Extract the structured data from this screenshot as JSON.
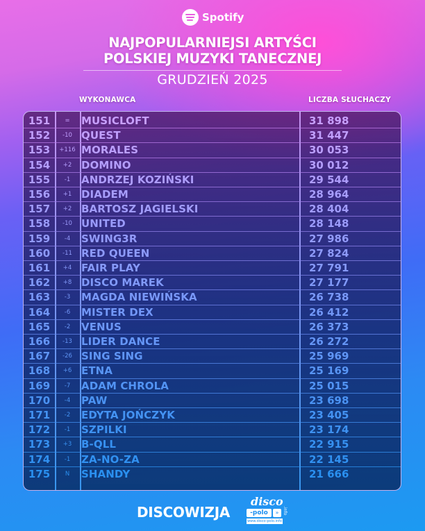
{
  "header": {
    "brand": "Spotify",
    "title_line1": "NAJPOPULARNIEJSI ARTYŚCI",
    "title_line2": "POLSKIEJ MUZYKI TANECZNEJ",
    "subtitle": "GRUDZIEŃ 2025"
  },
  "columns": {
    "artist": "WYKONAWCA",
    "listeners": "LICZBA SŁUCHACZY"
  },
  "rows": [
    {
      "rank": "151",
      "change": "=",
      "artist": "MUSICLOFT",
      "listeners": "31 898"
    },
    {
      "rank": "152",
      "change": "-10",
      "artist": "QUEST",
      "listeners": "31 447"
    },
    {
      "rank": "153",
      "change": "+116",
      "artist": "MORALES",
      "listeners": "30 053"
    },
    {
      "rank": "154",
      "change": "+2",
      "artist": "DOMINO",
      "listeners": "30 012"
    },
    {
      "rank": "155",
      "change": "-1",
      "artist": "ANDRZEJ KOZIŃSKI",
      "listeners": "29 544"
    },
    {
      "rank": "156",
      "change": "+1",
      "artist": "DIADEM",
      "listeners": "28 964"
    },
    {
      "rank": "157",
      "change": "+2",
      "artist": "BARTOSZ JAGIELSKI",
      "listeners": "28 404"
    },
    {
      "rank": "158",
      "change": "-10",
      "artist": "UNITED",
      "listeners": "28 148"
    },
    {
      "rank": "159",
      "change": "-4",
      "artist": "SWING3R",
      "listeners": "27 986"
    },
    {
      "rank": "160",
      "change": "-11",
      "artist": "RED QUEEN",
      "listeners": "27 824"
    },
    {
      "rank": "161",
      "change": "+4",
      "artist": "FAIR PLAY",
      "listeners": "27 791"
    },
    {
      "rank": "162",
      "change": "+8",
      "artist": "DISCO MAREK",
      "listeners": "27 177"
    },
    {
      "rank": "163",
      "change": "-3",
      "artist": "MAGDA NIEWIŃSKA",
      "listeners": "26 738"
    },
    {
      "rank": "164",
      "change": "-6",
      "artist": "MISTER DEX",
      "listeners": "26 412"
    },
    {
      "rank": "165",
      "change": "-2",
      "artist": "VENUS",
      "listeners": "26 373"
    },
    {
      "rank": "166",
      "change": "-13",
      "artist": "LIDER DANCE",
      "listeners": "26 272"
    },
    {
      "rank": "167",
      "change": "-26",
      "artist": "SING SING",
      "listeners": "25 969"
    },
    {
      "rank": "168",
      "change": "+6",
      "artist": "ETNA",
      "listeners": "25 169"
    },
    {
      "rank": "169",
      "change": "-7",
      "artist": "ADAM CHROLA",
      "listeners": "25 015"
    },
    {
      "rank": "170",
      "change": "-4",
      "artist": "PAW",
      "listeners": "23 698"
    },
    {
      "rank": "171",
      "change": "-2",
      "artist": "EDYTA JOŃCZYK",
      "listeners": "23 405"
    },
    {
      "rank": "172",
      "change": "-1",
      "artist": "SZPILKI",
      "listeners": "23 174"
    },
    {
      "rank": "173",
      "change": "+3",
      "artist": "B-QLL",
      "listeners": "22 915"
    },
    {
      "rank": "174",
      "change": "-1",
      "artist": "ZA-NO-ZA",
      "listeners": "22 145"
    },
    {
      "rank": "175",
      "change": "N",
      "artist": "SHANDY",
      "listeners": "21 666"
    }
  ],
  "footer": {
    "left_brand": "DISCOWIZJA",
    "right_brand_top": "disco",
    "right_brand_bottom": "-polo",
    "right_brand_arrow": "»",
    "right_brand_suffix": ".info",
    "right_brand_url": "www.disco-polo.info"
  },
  "colors": {
    "pink": "#ff4fd8",
    "violet": "#a060f0",
    "blue": "#2c8af3",
    "text_top": "#c8a0ff",
    "text_bottom": "#2a90f0"
  }
}
